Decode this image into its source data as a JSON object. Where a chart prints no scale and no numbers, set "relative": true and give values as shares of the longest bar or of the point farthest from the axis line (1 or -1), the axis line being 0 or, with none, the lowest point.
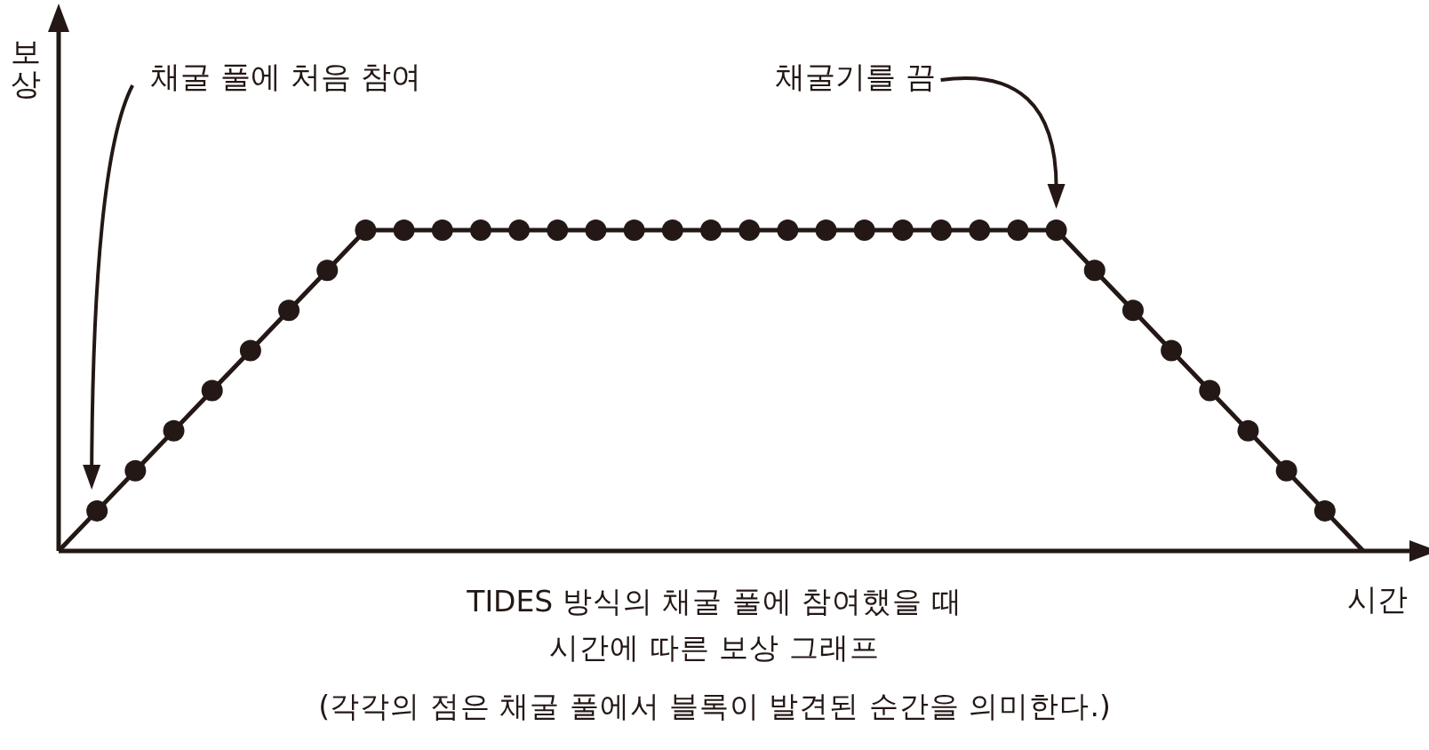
{
  "chart_data": {
    "type": "line",
    "title": "TIDES 방식의 채굴 풀에 참여했을 때 시간에 따른 보상 그래프",
    "annotations": [
      "채굴 풀에 처음 참여",
      "채굴기를 끔",
      "(각각의 점은 채굴 풀에서 블록이 발견된 순간을 의미한다.)"
    ],
    "xlabel": "시간",
    "ylabel": "보상",
    "relative": true,
    "marker": "circle",
    "color": "#231815",
    "categories": [
      null,
      null,
      null,
      null,
      null,
      null,
      null,
      null,
      null,
      null,
      null,
      null,
      null,
      null,
      null,
      null,
      null,
      null,
      null,
      null,
      null,
      null,
      null,
      null,
      null,
      null,
      null,
      null,
      null,
      null,
      null,
      null,
      null,
      null,
      null
    ],
    "values": [
      0,
      0.125,
      0.25,
      0.375,
      0.5,
      0.625,
      0.75,
      0.875,
      1,
      1,
      1,
      1,
      1,
      1,
      1,
      1,
      1,
      1,
      1,
      1,
      1,
      1,
      1,
      1,
      1,
      1,
      1,
      0.875,
      0.75,
      0.625,
      0.5,
      0.375,
      0.25,
      0.125,
      0
    ]
  }
}
